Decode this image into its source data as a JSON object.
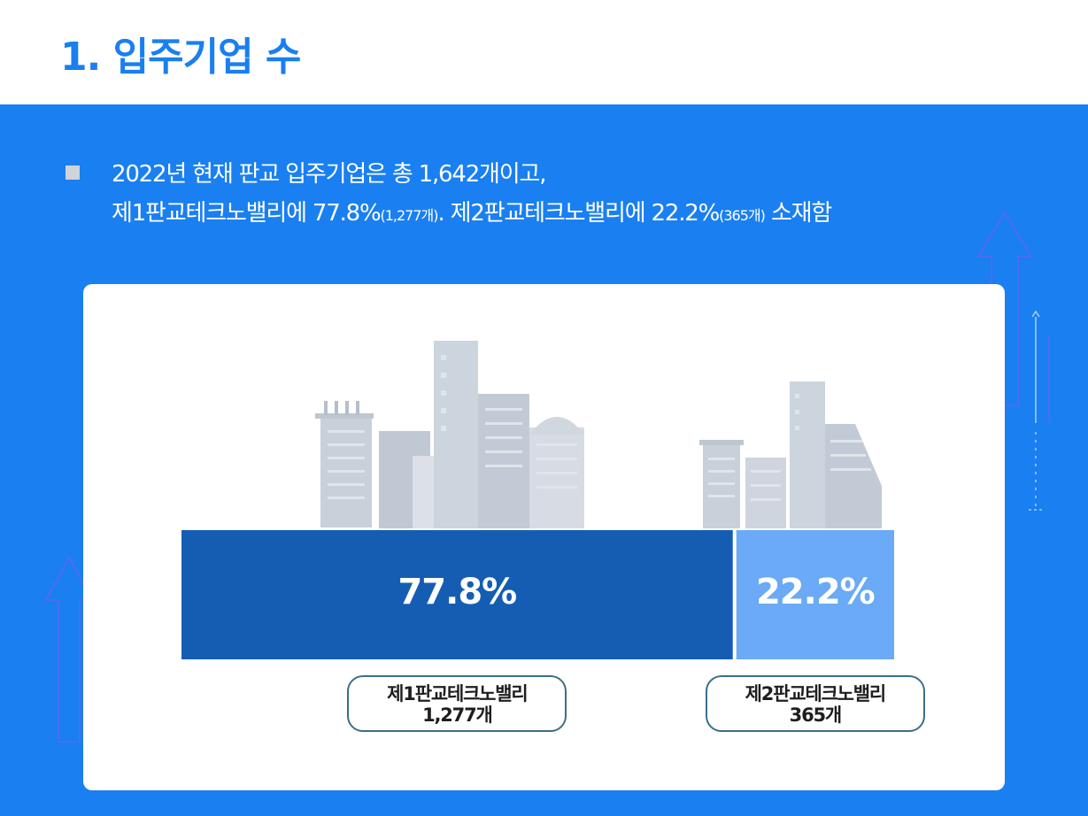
{
  "page": {
    "title": "1. 입주기업 수",
    "accent_color": "#1a7ff0"
  },
  "summary": {
    "line1": "2022년 현재 판교 입주기업은 총 1,642개이고,",
    "line2_a": "제1판교테크노밸리에 77.8%",
    "line2_b": "(1,277개)",
    "line2_c": ". 제2판교테크노밸리에 22.2%",
    "line2_d": "(365개)",
    "line2_e": " 소재함"
  },
  "chart_data": {
    "type": "bar",
    "orientation": "horizontal-stacked",
    "categories": [
      "제1판교테크노밸리",
      "제2판교테크노밸리"
    ],
    "values": [
      77.8,
      22.2
    ],
    "counts": [
      "1,277개",
      "365개"
    ],
    "value_labels": [
      "77.8%",
      "22.2%"
    ],
    "unit": "%",
    "colors": [
      "#155db3",
      "#6aaaf6"
    ]
  },
  "labels": {
    "first_name": "제1판교테크노밸리",
    "first_count": "1,277개",
    "second_name": "제2판교테크노밸리",
    "second_count": "365개"
  }
}
